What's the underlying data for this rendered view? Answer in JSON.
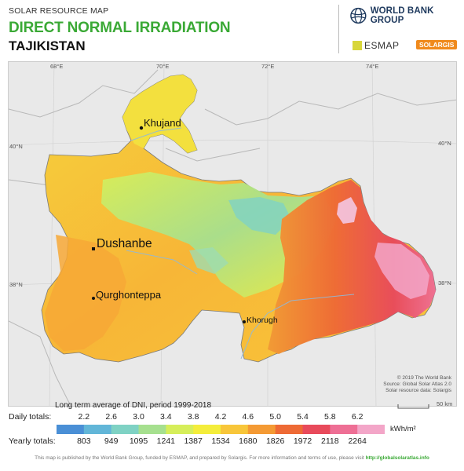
{
  "header": {
    "subtitle": "SOLAR RESOURCE MAP",
    "title": "DIRECT NORMAL IRRADIATION",
    "country": "TAJIKISTAN"
  },
  "logos": {
    "world_bank": "WORLD BANK GROUP",
    "esmap": "ESMAP",
    "solargis": "SOLARGIS"
  },
  "map": {
    "longitudes": [
      "68°E",
      "70°E",
      "72°E",
      "74°E"
    ],
    "latitudes": [
      "40°N",
      "38°N"
    ],
    "cities": {
      "khujand": "Khujand",
      "dushanbe": "Dushanbe",
      "qurghonteppa": "Qurghonteppa",
      "khorugh": "Khorugh"
    },
    "credits": [
      "© 2019 The World Bank",
      "Source: Global Solar Atlas 2.0",
      "Solar resource data: Solargis"
    ]
  },
  "legend": {
    "title": "Long term average of DNI, period 1999-2018",
    "daily_label": "Daily totals:",
    "yearly_label": "Yearly totals:",
    "daily": [
      "2.2",
      "2.6",
      "3.0",
      "3.4",
      "3.8",
      "4.2",
      "4.6",
      "5.0",
      "5.4",
      "5.8",
      "6.2"
    ],
    "yearly": [
      "803",
      "949",
      "1095",
      "1241",
      "1387",
      "1534",
      "1680",
      "1826",
      "1972",
      "2118",
      "2264"
    ],
    "unit": "kWh/m²",
    "colors": [
      "#4a8fd6",
      "#62b6d8",
      "#7fd2c4",
      "#a6e08f",
      "#d6ee5a",
      "#f4ed3b",
      "#f8c63a",
      "#f49a34",
      "#ee6a35",
      "#e84a5b",
      "#ee6f95",
      "#f3a6c8"
    ]
  },
  "scale_bar": {
    "label": "50 km"
  },
  "footer": {
    "text": "This map is published by the World Bank Group, funded by ESMAP, and prepared by Solargis. For more information and terms of use, please visit",
    "link": "http://globalsolaratlas.info"
  }
}
